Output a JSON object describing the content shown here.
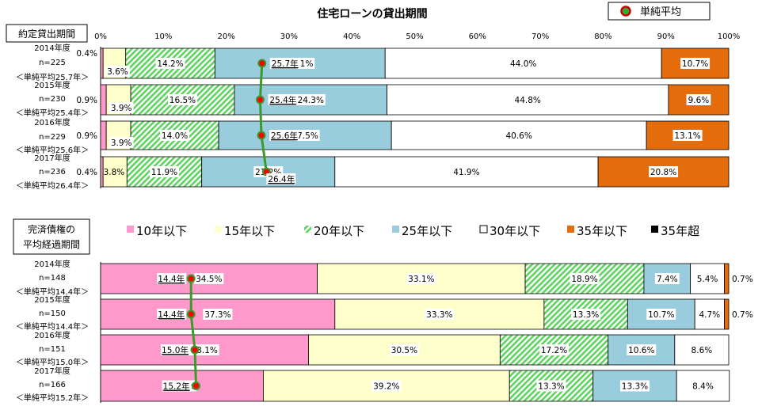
{
  "title": "住宅ローンの貸出期間",
  "avg_legend_label": "単純平均",
  "colors": {
    "10年以下": "#ff99cc",
    "15年以下": "#ffffcc",
    "20年以下": "#66dd66",
    "25年以下": "#99ccdd",
    "30年以下": "#ffffff",
    "35年以下": "#e46c0a",
    "35年超": "#000000",
    "avg_marker_fill": "#ff0000",
    "avg_line": "#3a9a2a",
    "avg_legend_marker_fill": "#33aa33",
    "avg_legend_marker_stroke": "#cc0000"
  },
  "legend": [
    "10年以下",
    "15年以下",
    "20年以下",
    "25年以下",
    "30年以下",
    "35年以下",
    "35年超"
  ],
  "chart_data": [
    {
      "type": "bar",
      "orientation": "horizontal",
      "stacked": "percent",
      "section_label": [
        "約定貸出期間"
      ],
      "xlim": [
        0,
        100
      ],
      "tick_labels": [
        "0%",
        "10%",
        "20%",
        "30%",
        "40%",
        "50%",
        "60%",
        "70%",
        "80%",
        "90%",
        "100%"
      ],
      "categories": [
        [
          "2014年度",
          "n=225",
          "＜単純平均25.7年＞"
        ],
        [
          "2015年度",
          "n=230",
          "＜単純平均25.4年＞"
        ],
        [
          "2016年度",
          "n=229",
          "＜単純平均25.6年＞"
        ],
        [
          "2017年度",
          "n=236",
          "＜単純平均26.4年＞"
        ]
      ],
      "series": [
        {
          "name": "10年以下",
          "values": [
            0.4,
            0.9,
            0.9,
            0.4
          ],
          "labels": [
            "0.4%",
            "0.9%",
            "0.9%",
            "0.4%"
          ]
        },
        {
          "name": "15年以下",
          "values": [
            3.6,
            3.9,
            3.9,
            3.8
          ],
          "labels": [
            "3.6%",
            "3.9%",
            "3.9%",
            "3.8%"
          ]
        },
        {
          "name": "20年以下",
          "values": [
            14.2,
            16.5,
            14.0,
            11.9
          ],
          "labels": [
            "14.2%",
            "16.5%",
            "14.0%",
            "11.9%"
          ]
        },
        {
          "name": "25年以下",
          "values": [
            27.1,
            24.3,
            27.5,
            21.2
          ],
          "labels": [
            "27.1%",
            "24.3%",
            "27.5%",
            "21.2%"
          ]
        },
        {
          "name": "30年以下",
          "values": [
            44.0,
            44.8,
            40.6,
            41.9
          ],
          "labels": [
            "44.0%",
            "44.8%",
            "40.6%",
            "41.9%"
          ]
        },
        {
          "name": "35年以下",
          "values": [
            10.7,
            9.6,
            13.1,
            20.8
          ],
          "labels": [
            "10.7%",
            "9.6%",
            "13.1%",
            "20.8%"
          ]
        },
        {
          "name": "35年超",
          "values": [
            0,
            0,
            0,
            0
          ],
          "labels": [
            "",
            "",
            "",
            ""
          ]
        }
      ],
      "averages": {
        "name": "単純平均",
        "values": [
          25.7,
          25.4,
          25.6,
          26.4
        ],
        "labels": [
          "25.7年",
          "25.4年",
          "25.6年",
          "26.4年"
        ]
      }
    },
    {
      "type": "bar",
      "orientation": "horizontal",
      "stacked": "percent",
      "section_label": [
        "完済債権の",
        "平均経過期間"
      ],
      "xlim": [
        0,
        100
      ],
      "categories": [
        [
          "2014年度",
          "n=148",
          "＜単純平均14.4年＞"
        ],
        [
          "2015年度",
          "n=150",
          "＜単純平均14.4年＞"
        ],
        [
          "2016年度",
          "n=151",
          "＜単純平均15.0年＞"
        ],
        [
          "2017年度",
          "n=166",
          "＜単純平均15.2年＞"
        ]
      ],
      "series": [
        {
          "name": "10年以下",
          "values": [
            34.5,
            37.3,
            33.1,
            25.9
          ],
          "labels": [
            "34.5%",
            "37.3%",
            "33.1%",
            "25.9%"
          ]
        },
        {
          "name": "15年以下",
          "values": [
            33.1,
            33.3,
            30.5,
            39.2
          ],
          "labels": [
            "33.1%",
            "33.3%",
            "30.5%",
            "39.2%"
          ]
        },
        {
          "name": "20年以下",
          "values": [
            18.9,
            13.3,
            17.2,
            13.3
          ],
          "labels": [
            "18.9%",
            "13.3%",
            "17.2%",
            "13.3%"
          ]
        },
        {
          "name": "25年以下",
          "values": [
            7.4,
            10.7,
            10.6,
            13.3
          ],
          "labels": [
            "7.4%",
            "10.7%",
            "10.6%",
            "13.3%"
          ]
        },
        {
          "name": "30年以下",
          "values": [
            5.4,
            4.7,
            8.6,
            8.4
          ],
          "labels": [
            "5.4%",
            "4.7%",
            "8.6%",
            "8.4%"
          ]
        },
        {
          "name": "35年以下",
          "values": [
            0.7,
            0.7,
            0,
            0
          ],
          "labels": [
            "0.7%",
            "0.7%",
            "",
            ""
          ]
        },
        {
          "name": "35年超",
          "values": [
            0,
            0,
            0,
            0
          ],
          "labels": [
            "",
            "",
            "",
            ""
          ]
        }
      ],
      "averages": {
        "name": "単純平均",
        "values": [
          14.4,
          14.4,
          15.0,
          15.2
        ],
        "labels": [
          "14.4年",
          "14.4年",
          "15.0年",
          "15.2年"
        ]
      }
    }
  ]
}
